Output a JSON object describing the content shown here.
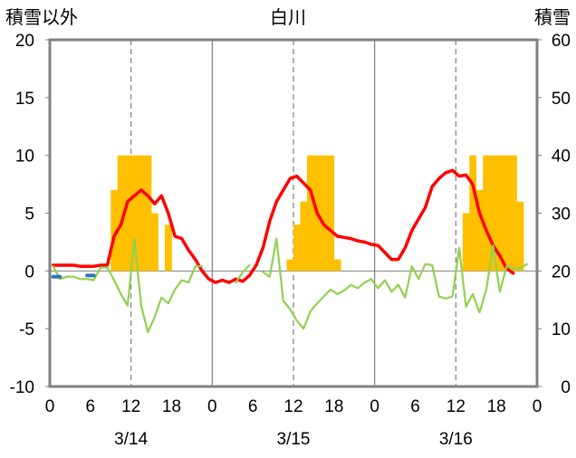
{
  "chart_data": {
    "type": "bar",
    "title": "白川",
    "left_axis_label": "積雪以外",
    "right_axis_label": "積雪",
    "left_ylim": [
      -10,
      20
    ],
    "left_ticks": [
      "20",
      "15",
      "10",
      "5",
      "0",
      "-5",
      "-10"
    ],
    "right_ylim": [
      0,
      60
    ],
    "right_ticks": [
      "60",
      "50",
      "40",
      "30",
      "20",
      "10",
      "0"
    ],
    "x_tick_labels": [
      "0",
      "6",
      "12",
      "18",
      "0",
      "6",
      "12",
      "18",
      "0",
      "6",
      "12",
      "18",
      "0"
    ],
    "day_labels": [
      "3/14",
      "3/15",
      "3/16"
    ],
    "grid": "dashed vertical at 12h",
    "colors": {
      "bars": "#ffc000",
      "red_line": "#ff0000",
      "green_line": "#92d050",
      "blue_line": "#2e75b6",
      "purple_line": "#7030a0",
      "frame": "#808080"
    },
    "x_hours": [
      0,
      1,
      2,
      3,
      4,
      5,
      6,
      7,
      8,
      9,
      10,
      11,
      12,
      13,
      14,
      15,
      16,
      17,
      18,
      19,
      20,
      21,
      22,
      23,
      24,
      25,
      26,
      27,
      28,
      29,
      30,
      31,
      32,
      33,
      34,
      35,
      36,
      37,
      38,
      39,
      40,
      41,
      42,
      43,
      44,
      45,
      46,
      47,
      48,
      49,
      50,
      51,
      52,
      53,
      54,
      55,
      56,
      57,
      58,
      59,
      60,
      61,
      62,
      63,
      64,
      65,
      66,
      67,
      68,
      69,
      70,
      71
    ],
    "bar_values": [
      0,
      0,
      0,
      0,
      0,
      0,
      0,
      0,
      0,
      7,
      10,
      10,
      10,
      10,
      10,
      5,
      0,
      4,
      0,
      0,
      0,
      0,
      0,
      0,
      0,
      0,
      0,
      0,
      0,
      0,
      0,
      0,
      0,
      0,
      0,
      1,
      4,
      6,
      10,
      10,
      10,
      10,
      1,
      0,
      0,
      0,
      0,
      0,
      0,
      0,
      0,
      0,
      0,
      0,
      0,
      0,
      0,
      0,
      0,
      0,
      0,
      5,
      10,
      7,
      10,
      10,
      10,
      10,
      10,
      6,
      0,
      0
    ],
    "series": [
      {
        "values": [
          0.5,
          0.5,
          0.5,
          0.5,
          0.4,
          0.4,
          0.4,
          0.5,
          0.5,
          3,
          4,
          6,
          6.5,
          7,
          6.5,
          5.8,
          6.5,
          5,
          3,
          2.8,
          1.8,
          1,
          0,
          -0.7,
          -1,
          -0.8,
          -1,
          -0.7,
          -0.9,
          -0.4,
          0.5,
          2,
          4.3,
          6,
          7,
          8,
          8.2,
          7.6,
          7,
          5,
          4,
          3.5,
          3,
          2.9,
          2.8,
          2.6,
          2.5,
          2.3,
          2.2,
          1.6,
          1,
          1,
          2,
          3.5,
          4.5,
          5.5,
          7.3,
          8,
          8.5,
          8.7,
          8.2,
          8.3,
          7.5,
          5,
          3.5,
          2.2,
          1.3,
          0.2,
          -0.2,
          null,
          null,
          null
        ]
      },
      {
        "values": [
          0.4,
          -0.7,
          -0.5,
          -0.5,
          -0.7,
          -0.7,
          -0.8,
          0.3,
          0.3,
          -0.8,
          -2,
          -3,
          2.8,
          -3,
          -5.3,
          -4,
          -2.3,
          -2.8,
          -1.6,
          -0.8,
          -1,
          0.4,
          0.4,
          null,
          null,
          null,
          null,
          -1,
          -0.1,
          0.5,
          null,
          -0.1,
          -0.5,
          2.8,
          -2.6,
          -3.3,
          -4.3,
          -5,
          -3.5,
          -2.8,
          -2.2,
          -1.6,
          -2,
          -1.7,
          -1.2,
          -1.5,
          -1,
          -0.7,
          -1.5,
          -0.8,
          -1.8,
          -1.2,
          -2.3,
          0.4,
          -0.7,
          0.6,
          0.5,
          -2.2,
          -2.4,
          -2.2,
          2,
          -3.1,
          -2,
          -3.6,
          -1.6,
          2.2,
          -1.8,
          0.4,
          0.2,
          0.2,
          0.6,
          null
        ]
      },
      {
        "values": [
          -0.5,
          -0.5,
          null,
          null,
          null,
          -0.4,
          -0.4,
          null,
          null,
          null,
          null,
          null,
          null,
          null,
          null,
          null,
          null,
          null,
          null,
          null,
          null,
          null,
          null,
          null,
          null,
          null,
          null,
          null,
          null,
          null,
          null,
          null,
          null,
          null,
          null,
          null,
          null,
          null,
          null,
          null,
          null,
          null,
          null,
          null,
          null,
          null,
          null,
          null,
          null,
          null,
          null,
          null,
          null,
          null,
          null,
          null,
          null,
          null,
          null,
          null,
          null,
          null,
          null,
          null,
          null,
          null,
          null,
          null,
          null,
          null,
          null,
          null
        ]
      },
      {
        "values": [
          -10,
          -10,
          -10,
          -10,
          -10,
          -10,
          -10,
          -10,
          -10,
          -10,
          -10,
          -10,
          -10,
          -10,
          -10,
          -10,
          -10,
          -10,
          -10,
          -10,
          -10,
          -10,
          -10,
          -10,
          -10,
          -10,
          -10,
          -10,
          -10,
          -10,
          -10,
          -10,
          -10,
          -10,
          -10,
          -10,
          -10,
          -10,
          -10,
          -10,
          -10,
          -10,
          -10,
          -10,
          -10,
          -10,
          -10,
          -10,
          -10,
          -10,
          -10,
          -10,
          -10,
          -10,
          -10,
          -10,
          -10,
          -10,
          -10,
          -10,
          -10,
          -10,
          -10,
          -10,
          -10,
          -10,
          -10,
          -10,
          -10,
          -10,
          -10,
          -10
        ]
      }
    ]
  }
}
